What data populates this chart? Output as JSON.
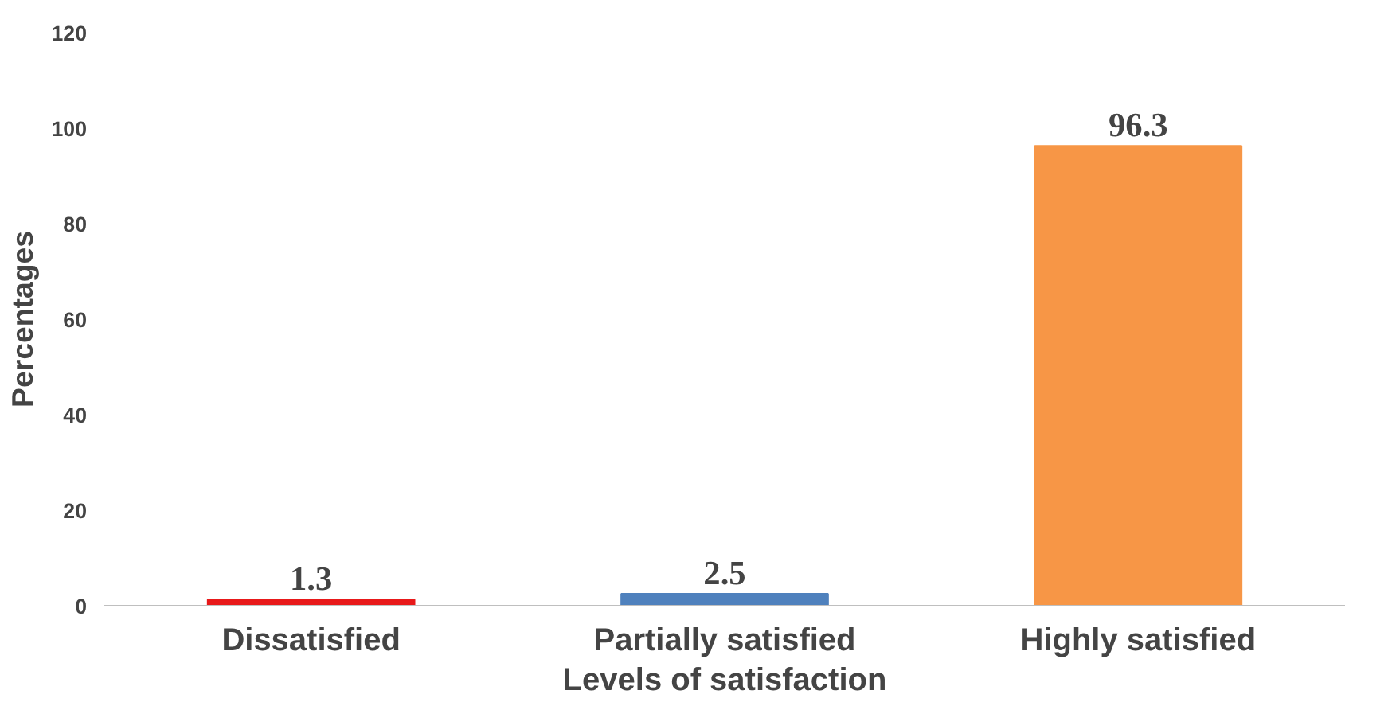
{
  "chart_data": {
    "type": "bar",
    "xlabel": "Levels of satisfaction",
    "ylabel": "Percentages",
    "categories": [
      "Dissatisfied",
      "Partially satisfied",
      "Highly satisfied"
    ],
    "values": [
      1.3,
      2.5,
      96.3
    ],
    "colors": [
      "#e8191a",
      "#4f81bd",
      "#f79646"
    ],
    "ylim": [
      0,
      120
    ],
    "yticks": [
      0,
      20,
      40,
      60,
      80,
      100,
      120
    ],
    "data_labels": true
  }
}
